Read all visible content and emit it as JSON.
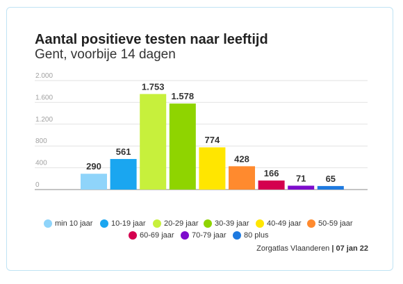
{
  "card": {
    "title": "Aantal positieve testen naar leeftijd",
    "subtitle": "Gent, voorbije 14 dagen"
  },
  "chart_data": {
    "type": "bar",
    "title": "Aantal positieve testen naar leeftijd",
    "subtitle": "Gent, voorbije 14 dagen",
    "categories": [
      "min 10 jaar",
      "10-19 jaar",
      "20-29 jaar",
      "30-39 jaar",
      "40-49 jaar",
      "50-59 jaar",
      "60-69 jaar",
      "70-79 jaar",
      "80 plus"
    ],
    "values": [
      290,
      561,
      1753,
      1578,
      774,
      428,
      166,
      71,
      65
    ],
    "value_labels": [
      "290",
      "561",
      "1.753",
      "1.578",
      "774",
      "428",
      "166",
      "71",
      "65"
    ],
    "colors": [
      "#8fd4fa",
      "#1aa6f0",
      "#c7f03c",
      "#8fd400",
      "#ffe600",
      "#ff8a2e",
      "#d4004f",
      "#7d0ccc",
      "#1e7ae0"
    ],
    "yticks": [
      0,
      400,
      800,
      1200,
      1600,
      2000
    ],
    "ytick_labels": [
      "0",
      "400",
      "800",
      "1.200",
      "1.600",
      "2.000"
    ],
    "ylim": [
      0,
      2000
    ],
    "grid": true,
    "legend_position": "bottom"
  },
  "source": {
    "text": "Zorgatlas Vlaanderen",
    "date": "07 jan 22"
  }
}
